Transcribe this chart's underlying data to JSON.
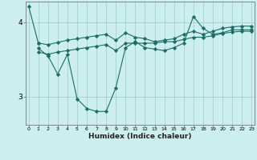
{
  "xlabel": "Humidex (Indice chaleur)",
  "background_color": "#cceeed",
  "line_color": "#1a6e65",
  "grid_color": "#99cccc",
  "x_ticks": [
    0,
    1,
    2,
    3,
    4,
    5,
    6,
    7,
    8,
    9,
    10,
    11,
    12,
    13,
    14,
    15,
    16,
    17,
    18,
    19,
    20,
    21,
    22,
    23
  ],
  "y_ticks": [
    3,
    4
  ],
  "ylim": [
    2.62,
    4.28
  ],
  "xlim": [
    -0.3,
    23.3
  ],
  "lines": [
    [
      4.22,
      3.72,
      null,
      null,
      null,
      null,
      null,
      null,
      null,
      null,
      null,
      null,
      null,
      null,
      null,
      null,
      null,
      null,
      null,
      null,
      null,
      null,
      null,
      null
    ],
    [
      null,
      3.6,
      3.57,
      3.6,
      3.62,
      3.64,
      3.66,
      3.68,
      3.7,
      3.62,
      3.72,
      3.72,
      3.72,
      3.72,
      3.74,
      3.74,
      3.77,
      3.8,
      3.8,
      3.82,
      3.85,
      3.87,
      3.88,
      3.88
    ],
    [
      null,
      3.72,
      3.7,
      3.73,
      3.76,
      3.78,
      3.8,
      3.82,
      3.84,
      3.76,
      3.86,
      3.8,
      3.78,
      3.74,
      3.76,
      3.78,
      3.84,
      3.88,
      3.84,
      3.88,
      3.92,
      3.94,
      3.95,
      3.95
    ],
    [
      null,
      3.65,
      3.55,
      3.3,
      3.57,
      2.97,
      2.84,
      2.8,
      2.8,
      3.12,
      3.66,
      3.74,
      3.66,
      3.64,
      3.62,
      3.66,
      3.72,
      4.08,
      3.92,
      3.84,
      3.86,
      3.9,
      3.9,
      3.9
    ]
  ]
}
